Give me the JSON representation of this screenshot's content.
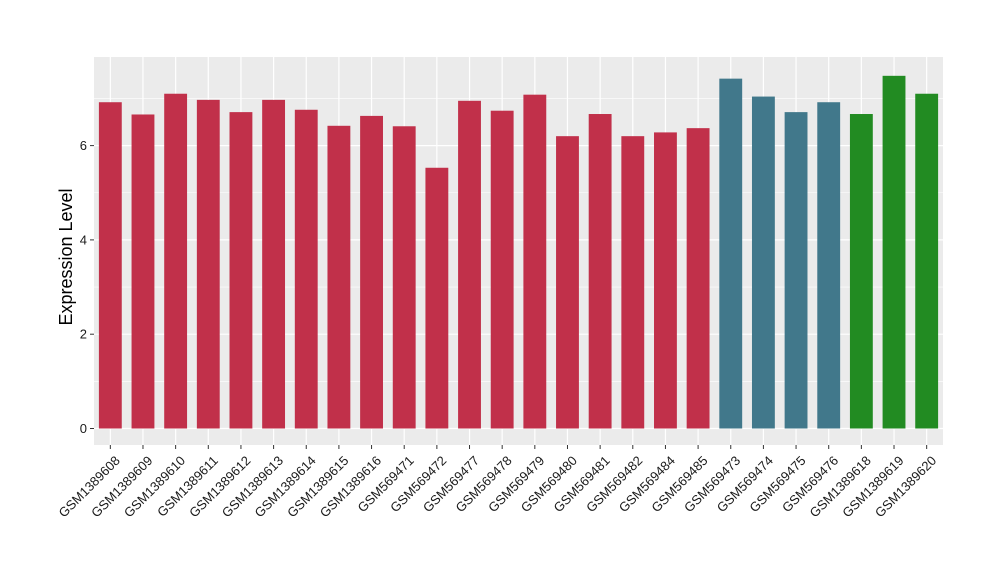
{
  "chart_data": {
    "type": "bar",
    "title": "",
    "xlabel": "",
    "ylabel": "Expression Level",
    "ylim": [
      0,
      7.8
    ],
    "yticks": [
      0,
      2,
      4,
      6
    ],
    "ytick_labels": [
      "0",
      "2",
      "4",
      "6"
    ],
    "grid": true,
    "legend": "none",
    "categories": [
      "GSM1389608",
      "GSM1389609",
      "GSM1389610",
      "GSM1389611",
      "GSM1389612",
      "GSM1389613",
      "GSM1389614",
      "GSM1389615",
      "GSM1389616",
      "GSM569471",
      "GSM569472",
      "GSM569477",
      "GSM569478",
      "GSM569479",
      "GSM569480",
      "GSM569481",
      "GSM569482",
      "GSM569484",
      "GSM569485",
      "GSM569473",
      "GSM569474",
      "GSM569475",
      "GSM569476",
      "GSM1389618",
      "GSM1389619",
      "GSM1389620"
    ],
    "values": [
      6.92,
      6.66,
      7.1,
      6.97,
      6.71,
      6.97,
      6.76,
      6.42,
      6.63,
      6.41,
      5.53,
      6.95,
      6.74,
      7.08,
      6.2,
      6.67,
      6.2,
      6.28,
      6.37,
      7.42,
      7.04,
      6.71,
      6.92,
      6.67,
      7.48,
      7.1
    ],
    "bar_colors": [
      "#C1304A",
      "#C1304A",
      "#C1304A",
      "#C1304A",
      "#C1304A",
      "#C1304A",
      "#C1304A",
      "#C1304A",
      "#C1304A",
      "#C1304A",
      "#C1304A",
      "#C1304A",
      "#C1304A",
      "#C1304A",
      "#C1304A",
      "#C1304A",
      "#C1304A",
      "#C1304A",
      "#C1304A",
      "#41788B",
      "#41788B",
      "#41788B",
      "#41788B",
      "#228B22",
      "#228B22",
      "#228B22"
    ],
    "panel_background": "#EBEBEB",
    "grid_color": "#FFFFFF"
  }
}
